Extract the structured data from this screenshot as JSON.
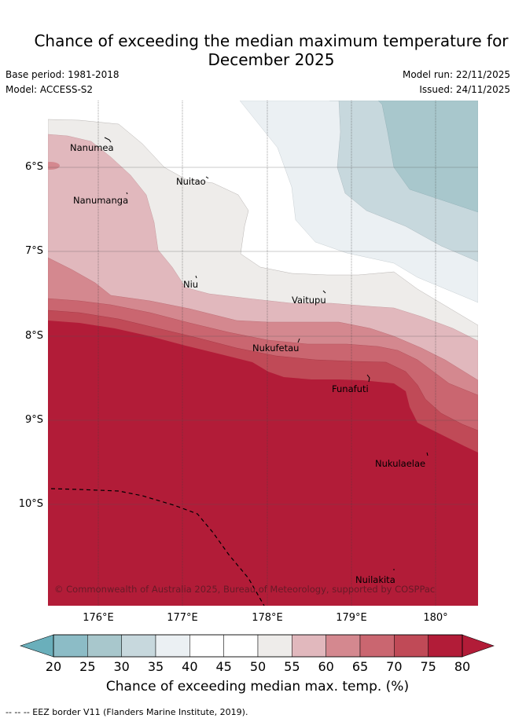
{
  "title_line1": "Chance of exceeding the median maximum temperature for",
  "title_line2": "December 2025",
  "base_period": "Base period: 1981-2018",
  "model": "Model: ACCESS-S2",
  "model_run": "Model run: 22/11/2025",
  "issued": "Issued: 24/11/2025",
  "lat_labels": [
    "6°S",
    "7°S",
    "8°S",
    "9°S",
    "10°S"
  ],
  "lon_labels": [
    "176°E",
    "177°E",
    "178°E",
    "179°E",
    "180°"
  ],
  "places": {
    "nanumea": "Nanumea",
    "nanumanga": "Nanumanga",
    "nuitao": "Nuitao",
    "niu": "Niu",
    "vaitupu": "Vaitupu",
    "nukufetau": "Nukufetau",
    "funafuti": "Funafuti",
    "nukulaelae": "Nukulaelae",
    "nuilakita": "Nuilakita"
  },
  "copyright": "© Commonwealth of Australia 2025, Bureau of Meteorology, supported by COSPPac",
  "colorbar": {
    "ticks": [
      "20",
      "25",
      "30",
      "35",
      "40",
      "45",
      "50",
      "55",
      "60",
      "65",
      "70",
      "75",
      "80"
    ],
    "colors": [
      "#6aafbb",
      "#8cbcc6",
      "#a8c7cc",
      "#c7d8dd",
      "#ebf0f3",
      "#ffffff",
      "#ffffff",
      "#eeecea",
      "#e1b8bd",
      "#d4888f",
      "#ca6670",
      "#c04a57",
      "#b21c38"
    ],
    "title": "Chance of exceeding median max. temp. (%)"
  },
  "footer": "--  --  -- EEZ border V11 (Flanders Marine Institute, 2019)."
}
